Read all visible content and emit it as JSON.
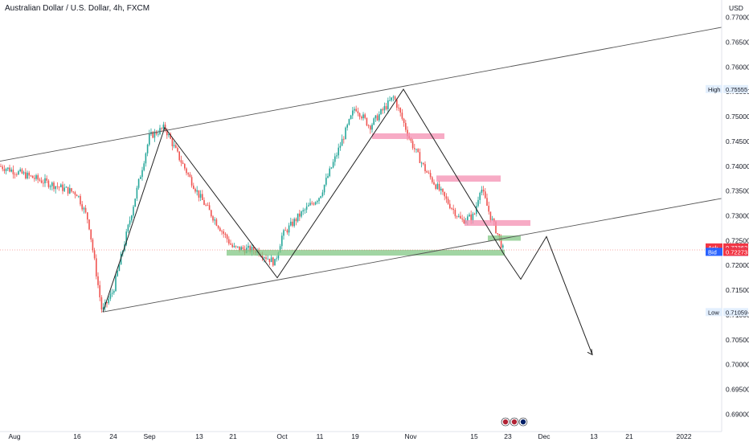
{
  "chart_data": {
    "type": "candlestick",
    "title": "Australian Dollar / U.S. Dollar, 4h, FXCM",
    "currency": "USD",
    "y_axis": {
      "ticks": [
        "0.77000",
        "0.76500",
        "0.76000",
        "0.75500",
        "0.75000",
        "0.74500",
        "0.74000",
        "0.73500",
        "0.73000",
        "0.72500",
        "0.72000",
        "0.71500",
        "0.71000",
        "0.70500",
        "0.70000",
        "0.69500",
        "0.69000"
      ],
      "range": [
        0.6865,
        0.7735
      ]
    },
    "x_axis": {
      "ticks": [
        "Aug",
        "16",
        "24",
        "Sep",
        "13",
        "21",
        "Oct",
        "11",
        "19",
        "Nov",
        "15",
        "23",
        "Dec",
        "13",
        "21",
        "2022"
      ]
    },
    "price_tags": [
      {
        "label": "High",
        "value": "0.75555",
        "color": "#e3effd"
      },
      {
        "label": "Ask",
        "value": "0.72362",
        "color": "#f23645"
      },
      {
        "label": "Bid",
        "value": "0.72273",
        "color": "#2962ff"
      },
      {
        "label": "",
        "value": "0.72273",
        "color": "#f23645"
      },
      {
        "label": "Low",
        "value": "0.71059",
        "color": "#e3effd"
      }
    ],
    "price_series": {
      "colors": {
        "up": "#26a69a",
        "down": "#ef5350"
      },
      "anchors": [
        [
          "Aug",
          0.739
        ],
        [
          "16",
          0.7345
        ],
        [
          "18",
          0.729
        ],
        [
          "22",
          0.7106
        ],
        [
          "24",
          0.715
        ],
        [
          "Sep",
          0.746
        ],
        [
          "3",
          0.7478
        ],
        [
          "7",
          0.742
        ],
        [
          "13",
          0.734
        ],
        [
          "18",
          0.728
        ],
        [
          "21",
          0.7235
        ],
        [
          "27",
          0.723
        ],
        [
          "28",
          0.7205
        ],
        [
          "Oct",
          0.726
        ],
        [
          "5",
          0.73
        ],
        [
          "11",
          0.734
        ],
        [
          "15",
          0.742
        ],
        [
          "19",
          0.752
        ],
        [
          "21",
          0.748
        ],
        [
          "26",
          0.754
        ],
        [
          "Nov",
          0.745
        ],
        [
          "5",
          0.739
        ],
        [
          "10",
          0.733
        ],
        [
          "12",
          0.729
        ],
        [
          "15",
          0.73
        ],
        [
          "17",
          0.736
        ],
        [
          "19",
          0.73
        ],
        [
          "21",
          0.726
        ],
        [
          "23",
          0.7227
        ]
      ]
    },
    "channel_lines": [
      {
        "from": [
          "Jul",
          0.741
        ],
        "to": [
          "Dec+",
          0.768
        ]
      },
      {
        "from": [
          "22 Aug",
          0.7106
        ],
        "to": [
          "Dec+",
          0.7335
        ]
      }
    ],
    "zigzag": [
      [
        "22 Aug",
        0.7106
      ],
      [
        "3 Sep",
        0.7478
      ],
      [
        "29 Sep",
        0.7175
      ],
      [
        "28 Oct",
        0.7555
      ],
      [
        "24 Nov",
        0.722
      ],
      [
        "27 Nov",
        0.7172
      ],
      [
        "1 Dec",
        0.7258
      ],
      [
        "14 Dec",
        0.702
      ]
    ],
    "zones": [
      {
        "kind": "support",
        "color": "#81c784",
        "from": "20 Sep",
        "to": "24 Nov",
        "range": [
          0.7223,
          0.7228
        ]
      },
      {
        "kind": "support",
        "color": "#81c784",
        "from": "22 Nov",
        "to": "27 Nov",
        "range": [
          0.7253,
          0.7257
        ]
      },
      {
        "kind": "resistance",
        "color": "#f48fb1",
        "from": "Oct 20",
        "to": "Nov 7",
        "range": [
          0.7458,
          0.7463
        ]
      },
      {
        "kind": "resistance",
        "color": "#f48fb1",
        "from": "Nov 5",
        "to": "Nov 17",
        "range": [
          0.7372,
          0.7378
        ]
      },
      {
        "kind": "resistance",
        "color": "#f48fb1",
        "from": "Nov 12",
        "to": "Nov 25",
        "range": [
          0.7283,
          0.7288
        ]
      }
    ]
  }
}
